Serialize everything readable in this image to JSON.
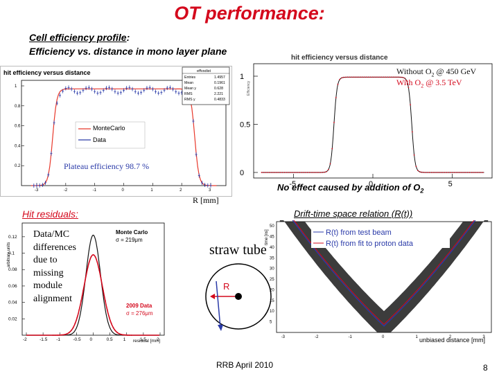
{
  "slide": {
    "title": "OT performance:",
    "subtitle_line1_main": "Cell efficiency profile",
    "subtitle_line1_tail": ":",
    "subtitle_line2": "Efficiency vs. distance in mono layer plane",
    "page_number": "8",
    "footer": "RRB April 2010"
  },
  "colors": {
    "title": "#d4081c",
    "montecarlo": "#e8372a",
    "data": "#2a3aa8",
    "without": "#111111",
    "with": "#d4081c"
  },
  "eff_left": {
    "header": "hit efficiency versus distance",
    "stats": {
      "name": "effvsdist",
      "rows": [
        {
          "k": "Entries",
          "v": "1.4957"
        },
        {
          "k": "Mean",
          "v": "0.1961"
        },
        {
          "k": "Mean y",
          "v": "0.628"
        },
        {
          "k": "RMS",
          "v": "2.221"
        },
        {
          "k": "RMS y",
          "v": "0.4833"
        }
      ]
    },
    "legend": [
      "MonteCarlo",
      "Data"
    ],
    "plateau_label": "Plateau efficiency  98.7 %",
    "yticks": [
      "1",
      "0.8",
      "0.6",
      "0.4",
      "0.2"
    ],
    "xticks": [
      "-3",
      "-2",
      "-1",
      "0",
      "1",
      "2",
      "3"
    ]
  },
  "eff_right": {
    "header": "hit efficiency versus distance",
    "legend_without": "Without O",
    "legend_without_sub": "2",
    "legend_without_tail": " @ 450 GeV",
    "legend_with": "With O",
    "legend_with_sub": "2",
    "legend_with_tail": " @ 3.5 TeV",
    "yticks": [
      "1",
      "0.5",
      "0"
    ],
    "xticks": [
      "-5",
      "0",
      "5"
    ],
    "xlabel": "R [mm]",
    "axis_ylabel": "Efficiency",
    "note_main": "No effect caused by addition of O",
    "note_sub": "2"
  },
  "residuals": {
    "heading": "Hit residuals:",
    "ylabel": "arbitrary units",
    "annotation_lines": [
      "Data/MC",
      "differences",
      "due to",
      "missing",
      "module",
      "alignment"
    ],
    "mc_label": "Monte Carlo",
    "mc_sigma": "σ = 219μm",
    "data_label": "2009 Data",
    "data_sigma": "σ = 276μm",
    "yticks": [
      "0.12",
      "0.1",
      "0.08",
      "0.06",
      "0.04",
      "0.02"
    ],
    "xticks": [
      "-2",
      "-1.5",
      "-1",
      "-0.5",
      "0",
      "0.5",
      "1",
      "1.5",
      "2"
    ],
    "xlabel": "residual [mm]"
  },
  "straw": {
    "label": "straw tube",
    "r_label": "R"
  },
  "drift": {
    "heading": "Drift-time space relation (R(t))",
    "ylabel": "time [ns]",
    "legend_test_beam": "R(t) from test beam",
    "legend_fit": "R(t) from fit to proton data",
    "yticks": [
      "50",
      "45",
      "40",
      "35",
      "30",
      "25",
      "20",
      "15",
      "10",
      "5"
    ],
    "xticks": [
      "-3",
      "-2",
      "-1",
      "0",
      "1",
      "2",
      "3"
    ],
    "xlabel": "unbiased distance [mm]"
  }
}
